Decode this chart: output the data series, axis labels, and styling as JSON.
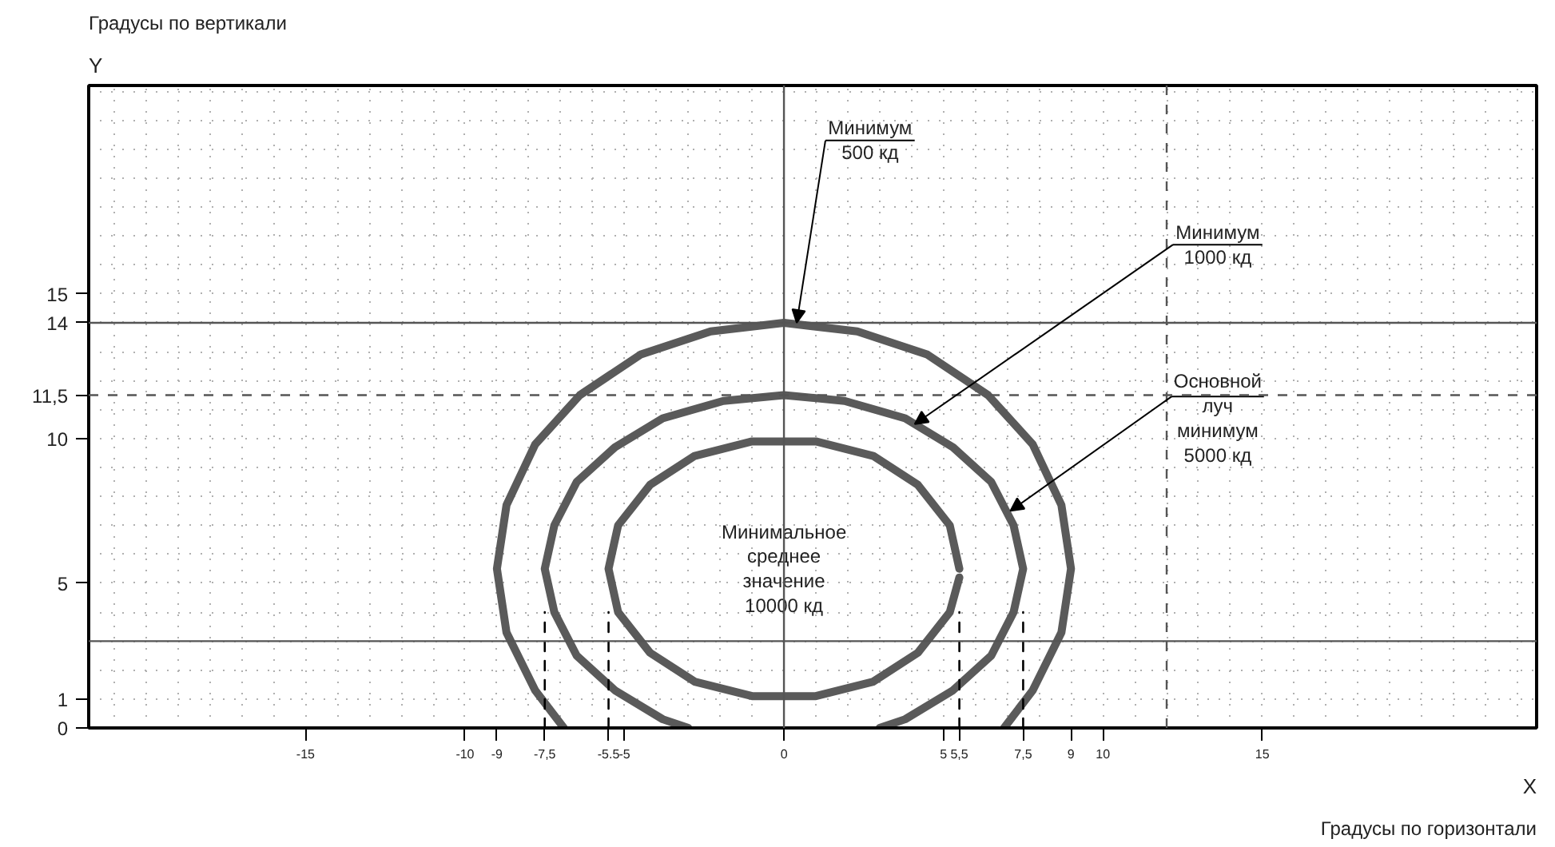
{
  "chart_data": {
    "type": "line",
    "xlabel": "Градусы по горизонтали",
    "ylabel": "Градусы по вертикали",
    "xlim": [
      -21.8,
      23.6
    ],
    "ylim": [
      0,
      22.2
    ],
    "xticks": [
      -15,
      -10,
      -9,
      {
        "value": -7.5,
        "label": "-7,5"
      },
      {
        "value": -5.5,
        "label": "-5.5"
      },
      -5,
      0,
      5,
      {
        "value": 5.5,
        "label": "5,5"
      },
      {
        "value": 7.5,
        "label": "7,5"
      },
      9,
      10,
      15
    ],
    "yticks": [
      0,
      1,
      5,
      10,
      {
        "value": 11.5,
        "label": "11,5"
      },
      14,
      15
    ],
    "grid": true,
    "series": [
      {
        "color": "#5a5a5a",
        "x": [
          -6.9,
          -7.8,
          -8.7,
          -9,
          -8.7,
          -7.8,
          -6.4,
          -4.5,
          -2.3,
          0,
          2.3,
          4.5,
          6.4,
          7.8,
          8.7,
          9,
          8.7,
          7.8,
          6.9
        ],
        "values": [
          0,
          1.3,
          3.3,
          5.5,
          7.7,
          9.8,
          11.5,
          12.9,
          13.7,
          14,
          13.7,
          12.9,
          11.5,
          9.8,
          7.7,
          5.5,
          3.3,
          1.3,
          0
        ]
      },
      {
        "color": "#5a5a5a",
        "x": [
          -3.0,
          -3.8,
          -5.3,
          -6.5,
          -7.2,
          -7.5,
          -7.2,
          -6.5,
          -5.3,
          -3.8,
          -1.9,
          0,
          1.9,
          3.8,
          5.3,
          6.5,
          7.2,
          7.5,
          7.2,
          6.5,
          5.3,
          3.8,
          3.0
        ],
        "values": [
          0,
          0.3,
          1.3,
          2.5,
          4.0,
          5.5,
          7.0,
          8.5,
          9.7,
          10.7,
          11.3,
          11.5,
          11.3,
          10.7,
          9.7,
          8.5,
          7.0,
          5.5,
          4.0,
          2.5,
          1.3,
          0.3,
          0
        ]
      },
      {
        "color": "#5a5a5a",
        "x": [
          5.5,
          5.2,
          4.2,
          2.8,
          1.0,
          -1.0,
          -2.8,
          -4.2,
          -5.2,
          -5.5,
          -5.2,
          -4.2,
          -2.8,
          -1.0,
          1.0,
          2.8,
          4.2,
          5.2,
          5.5
        ],
        "values": [
          5.5,
          7.0,
          8.4,
          9.4,
          9.9,
          9.9,
          9.4,
          8.4,
          7.0,
          5.5,
          4.0,
          2.6,
          1.6,
          1.1,
          1.1,
          1.6,
          2.6,
          4.0,
          5.2
        ]
      },
      {
        "color": "#000000",
        "line_style": "dashed",
        "x": [
          -7.5,
          -7.5
        ],
        "values": [
          0,
          4
        ]
      },
      {
        "color": "#000000",
        "line_style": "dashed",
        "x": [
          -5.5,
          -5.5
        ],
        "values": [
          0,
          4
        ]
      },
      {
        "color": "#000000",
        "line_style": "dashed",
        "x": [
          5.5,
          5.5
        ],
        "values": [
          0,
          4
        ]
      },
      {
        "color": "#000000",
        "line_style": "dashed",
        "x": [
          7.5,
          7.5
        ],
        "values": [
          0,
          4
        ]
      }
    ],
    "ref_lines": [
      {
        "axis": "y",
        "value": 14,
        "color": "#555555",
        "line_style": "solid"
      },
      {
        "axis": "y",
        "value": 11.5,
        "color": "#555555",
        "line_style": "dashed"
      },
      {
        "axis": "y",
        "value": 3,
        "color": "#555555",
        "line_style": "solid"
      },
      {
        "axis": "x",
        "value": 0,
        "color": "#555555",
        "line_style": "solid"
      },
      {
        "axis": "x",
        "value": 12,
        "color": "#555555",
        "line_style": "dashed"
      }
    ],
    "annotations": [
      {
        "text": "Минимум\n500 кд",
        "x": 0.4,
        "y": 14
      },
      {
        "text": "Минимум\n1000 кд",
        "x": 4.1,
        "y": 10.5
      },
      {
        "text": "Основной\nлуч\nминимум\n5000 кд",
        "x": 7.1,
        "y": 7.5
      },
      {
        "text": "Минимальное\nсреднее\nзначение\n10000 кд",
        "x": 0,
        "y": 5.5
      },
      "Y",
      "X"
    ]
  }
}
